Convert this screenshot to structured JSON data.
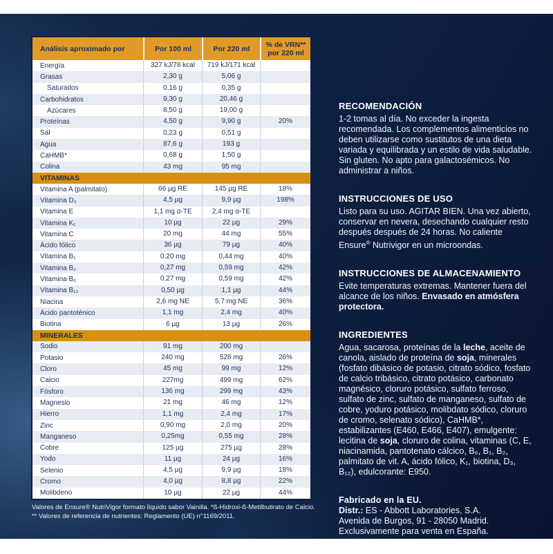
{
  "table": {
    "header": [
      "Análisis aproximado por",
      "Por 100 ml",
      "Por 220 ml",
      "% de VRN** por 220 ml"
    ],
    "sections": [
      {
        "title": null,
        "rows": [
          [
            "Energía",
            "327 kJ/78 kcal",
            "719 kJ/171 kcal",
            "",
            false
          ],
          [
            "Grasas",
            "2,30 g",
            "5,06 g",
            "",
            false
          ],
          [
            "Saturados",
            "0,16 g",
            "0,35 g",
            "",
            true
          ],
          [
            "Carbohidratos",
            "9,30 g",
            "20,46 g",
            "",
            false
          ],
          [
            "Azúcares",
            "8,50 g",
            "19,00 g",
            "",
            true
          ],
          [
            "Proteínas",
            "4,50 g",
            "9,90 g",
            "20%",
            false
          ],
          [
            "Sal",
            "0,23 g",
            "0,51 g",
            "",
            false
          ],
          [
            "Agua",
            "87,6 g",
            "193 g",
            "",
            false
          ],
          [
            "CaHMB*",
            "0,68 g",
            "1,50 g",
            "",
            false
          ],
          [
            "Colina",
            "43 mg",
            "95 mg",
            "",
            false
          ]
        ]
      },
      {
        "title": "VITAMINAS",
        "rows": [
          [
            "Vitamina A (palmitato)",
            "66 µg RE",
            "145 µg RE",
            "18%",
            false
          ],
          [
            "Vitamina D₃",
            "4,5 µg",
            "9,9 µg",
            "198%",
            false
          ],
          [
            "Vitamina E",
            "1,1 mg α-TE",
            "2,4 mg α-TE",
            "",
            false
          ],
          [
            "Vitamina K₁",
            "10 µg",
            "22 µg",
            "29%",
            false
          ],
          [
            "Vitamina C",
            "20 mg",
            "44 mg",
            "55%",
            false
          ],
          [
            "Ácido fólico",
            "36 µg",
            "79 µg",
            "40%",
            false
          ],
          [
            "Vitamina B₁",
            "0,20 mg",
            "0,44 mg",
            "40%",
            false
          ],
          [
            "Vitamina B₂",
            "0,27 mg",
            "0,59 mg",
            "42%",
            false
          ],
          [
            "Vitamina B₆",
            "0,27 mg",
            "0,59 mg",
            "42%",
            false
          ],
          [
            "Vitamina B₁₂",
            "0,50 µg",
            "1,1 µg",
            "44%",
            false
          ],
          [
            "Niacina",
            "2,6 mg NE",
            "5,7 mg NE",
            "36%",
            false
          ],
          [
            "Ácido pantoténico",
            "1,1 mg",
            "2,4 mg",
            "40%",
            false
          ],
          [
            "Biotina",
            "6 µg",
            "13 µg",
            "26%",
            false
          ]
        ]
      },
      {
        "title": "MINERALES",
        "rows": [
          [
            "Sodio",
            "91 mg",
            "200 mg",
            "",
            false
          ],
          [
            "Potasio",
            "240 mg",
            "528 mg",
            "26%",
            false
          ],
          [
            "Cloro",
            "45 mg",
            "99 mg",
            "12%",
            false
          ],
          [
            "Calcio",
            "227mg",
            "499 mg",
            "62%",
            false
          ],
          [
            "Fósforo",
            "136 mg",
            "299 mg",
            "43%",
            false
          ],
          [
            "Magnesio",
            "21 mg",
            "46 mg",
            "12%",
            false
          ],
          [
            "Hierro",
            "1,1 mg",
            "2,4 mg",
            "17%",
            false
          ],
          [
            "Zinc",
            "0,90 mg",
            "2,0 mg",
            "20%",
            false
          ],
          [
            "Manganeso",
            "0,25mg",
            "0,55 mg",
            "28%",
            false
          ],
          [
            "Cobre",
            "125 µg",
            "275 µg",
            "28%",
            false
          ],
          [
            "Yodo",
            "11 µg",
            "24 µg",
            "16%",
            false
          ],
          [
            "Selenio",
            "4,5 µg",
            "9,9 µg",
            "18%",
            false
          ],
          [
            "Cromo",
            "4,0 µg",
            "8,8 µg",
            "22%",
            false
          ],
          [
            "Molibdeno",
            "10 µg",
            "22 µg",
            "44%",
            false
          ]
        ]
      }
    ]
  },
  "footnote": {
    "line1": "Valores de Ensure® NutriVigor formato líquido sabor Vainilla. *ß-Hidroxi-ß-Metilbutirato de Calcio.",
    "line2": "** Valores de referencia de nutrientes: Reglamento (UE) n°1169/2011."
  },
  "panels": [
    {
      "heading": "RECOMENDACIÓN",
      "heading_style": "caps",
      "body": [
        [
          {
            "t": "1-2 tomas al día. No exceder la ingesta recomendada. Los complementos alimenticios no deben utilizarse como sustitutos de una dieta variada y equilibrada y un estilo de vida saludable. Sin gluten. No apto para galactosémicos. No administrar a niños."
          }
        ]
      ]
    },
    {
      "heading": "INSTRUCCIONES DE USO",
      "heading_style": "caps",
      "body": [
        [
          {
            "t": "Listo para su uso. AGITAR BIEN. Una vez abierto, conservar en nevera, desechando cualquier resto después después de 24 horas. No caliente Ensure"
          },
          {
            "t": "®",
            "sup": true
          },
          {
            "t": " Nutrivigor en un microondas."
          }
        ]
      ]
    },
    {
      "heading": "INSTRUCCIONES DE ALMACENAMIENTO",
      "heading_style": "caps",
      "body": [
        [
          {
            "t": "Evite temperaturas extremas. Mantener fuera del alcance de los niños. "
          },
          {
            "t": "Envasado en atmósfera protectora.",
            "b": true
          }
        ]
      ]
    },
    {
      "heading": "INGREDIENTES",
      "heading_style": "caps",
      "body": [
        [
          {
            "t": "Agua, sacarosa, proteínas de la "
          },
          {
            "t": "leche",
            "b": true
          },
          {
            "t": ", aceite de canola, aislado de proteína de "
          },
          {
            "t": "soja",
            "b": true
          },
          {
            "t": ", minerales (fosfato dibásico de potasio, citrato sódico, fosfato de calcio tribásico, citrato potásico, carbonato magnésico, cloruro potásico, sulfato ferroso, sulfato de zinc, sulfato de manganeso, sulfato de cobre, yoduro potásico, molibdato sódico, cloruro de cromo, selenato sódico), CaHMB*, estabilizantes (E460, E466, E407), emulgente: lecitina de "
          },
          {
            "t": "soja",
            "b": true
          },
          {
            "t": ", cloruro de colina, vitaminas (C, E, niacinamida, pantotenato cálcico, B₆, B₁, B₂, palmitato de vit. A, ácido fólico, K₁, biotina, D₃, B₁₂), edulcorante: E950."
          }
        ]
      ]
    },
    {
      "heading": "Fabricado en la EU.",
      "heading_style": "inline",
      "body": [
        [
          {
            "t": "Distr.:",
            "b": true
          },
          {
            "t": " ES - Abbott Laboratories, S.A."
          }
        ],
        [
          {
            "t": "Avenida de Burgos, 91 - 28050 Madrid."
          }
        ],
        [
          {
            "t": "Exclusivamente para venta en España."
          }
        ]
      ]
    }
  ],
  "colors": {
    "header_orange": "#e19a29",
    "section_orange": "#d98f12",
    "navy_background": "#0e2042",
    "row_alt": "#e7ecf3",
    "table_text": "#223257"
  }
}
